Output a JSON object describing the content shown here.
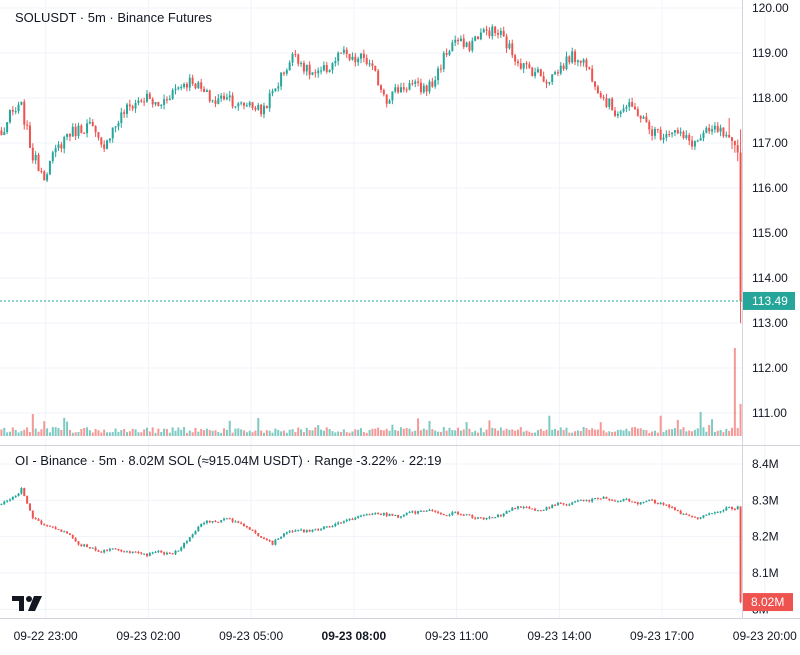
{
  "price_pane": {
    "title": "SOLUSDT · 5m · Binance Futures",
    "y_ticks": [
      "120.00",
      "119.00",
      "118.00",
      "117.00",
      "116.00",
      "115.00",
      "114.00",
      "113.00",
      "112.00",
      "111.00"
    ],
    "last_price_label": "113.49"
  },
  "oi_pane": {
    "title": "OI - Binance · 5m · 8.02M SOL (≈915.04M USDT) · Range -3.22% · 22:19",
    "y_ticks": [
      "8.4M",
      "8.3M",
      "8.2M",
      "8.1M"
    ],
    "last_value_label": "8.02M",
    "obscured_tick_label": "8M"
  },
  "x_axis": {
    "ticks": [
      "09-22 23:00",
      "09-23 02:00",
      "09-23 05:00",
      "09-23 08:00",
      "09-23 11:00",
      "09-23 14:00",
      "09-23 17:00",
      "09-23 20:00"
    ],
    "bold_tick": "09-23 08:00"
  },
  "colors": {
    "up": "#26a69a",
    "down": "#ef5350",
    "price_tag_bg": "#26a69a",
    "oi_tag_bg": "#ef5350",
    "grid": "#f0f3fa",
    "separator": "#d1d4dc",
    "text": "#131722"
  },
  "logo": "tradingview-logo",
  "chart_data": [
    {
      "type": "candlestick",
      "title": "SOLUSDT · 5m · Binance Futures",
      "x_range": [
        "09-22 21:40",
        "09-23 22:20"
      ],
      "ylim": [
        110.6,
        120.2
      ],
      "last_value": 113.49,
      "close_path": [
        [
          "09-22 21:40",
          117.0
        ],
        [
          "09-22 22:00",
          117.6
        ],
        [
          "09-22 22:20",
          117.8
        ],
        [
          "09-22 22:40",
          116.7
        ],
        [
          "09-22 23:00",
          116.3
        ],
        [
          "09-22 23:20",
          116.8
        ],
        [
          "09-22 23:40",
          117.2
        ],
        [
          "09-23 00:00",
          117.3
        ],
        [
          "09-23 00:20",
          117.4
        ],
        [
          "09-23 00:40",
          116.9
        ],
        [
          "09-23 01:00",
          117.3
        ],
        [
          "09-23 01:20",
          117.7
        ],
        [
          "09-23 01:40",
          117.9
        ],
        [
          "09-23 02:00",
          118.0
        ],
        [
          "09-23 02:20",
          117.8
        ],
        [
          "09-23 02:40",
          118.1
        ],
        [
          "09-23 03:00",
          118.3
        ],
        [
          "09-23 03:20",
          118.4
        ],
        [
          "09-23 03:40",
          118.1
        ],
        [
          "09-23 04:00",
          117.9
        ],
        [
          "09-23 04:20",
          118.1
        ],
        [
          "09-23 04:40",
          117.8
        ],
        [
          "09-23 05:00",
          117.9
        ],
        [
          "09-23 05:20",
          117.7
        ],
        [
          "09-23 05:40",
          118.1
        ],
        [
          "09-23 06:00",
          118.6
        ],
        [
          "09-23 06:20",
          119.0
        ],
        [
          "09-23 06:40",
          118.6
        ],
        [
          "09-23 07:00",
          118.5
        ],
        [
          "09-23 07:20",
          118.7
        ],
        [
          "09-23 07:40",
          119.0
        ],
        [
          "09-23 08:00",
          118.8
        ],
        [
          "09-23 08:20",
          118.9
        ],
        [
          "09-23 08:40",
          118.5
        ],
        [
          "09-23 09:00",
          118.0
        ],
        [
          "09-23 09:20",
          118.2
        ],
        [
          "09-23 09:40",
          118.3
        ],
        [
          "09-23 10:00",
          118.2
        ],
        [
          "09-23 10:20",
          118.3
        ],
        [
          "09-23 10:40",
          118.9
        ],
        [
          "09-23 11:00",
          119.3
        ],
        [
          "09-23 11:20",
          119.1
        ],
        [
          "09-23 11:40",
          119.4
        ],
        [
          "09-23 12:00",
          119.5
        ],
        [
          "09-23 12:20",
          119.4
        ],
        [
          "09-23 12:40",
          119.0
        ],
        [
          "09-23 13:00",
          118.7
        ],
        [
          "09-23 13:20",
          118.6
        ],
        [
          "09-23 13:40",
          118.4
        ],
        [
          "09-23 14:00",
          118.6
        ],
        [
          "09-23 14:20",
          118.9
        ],
        [
          "09-23 14:40",
          118.9
        ],
        [
          "09-23 15:00",
          118.5
        ],
        [
          "09-23 15:20",
          118.0
        ],
        [
          "09-23 15:40",
          117.7
        ],
        [
          "09-23 16:00",
          117.8
        ],
        [
          "09-23 16:20",
          117.7
        ],
        [
          "09-23 16:40",
          117.3
        ],
        [
          "09-23 17:00",
          117.2
        ],
        [
          "09-23 17:20",
          117.3
        ],
        [
          "09-23 17:40",
          117.1
        ],
        [
          "09-23 18:00",
          117.0
        ],
        [
          "09-23 18:20",
          117.2
        ],
        [
          "09-23 18:40",
          117.3
        ],
        [
          "09-23 19:00",
          117.0
        ],
        [
          "09-23 19:20",
          116.7
        ],
        [
          "09-23 19:40",
          116.9
        ],
        [
          "09-23 20:00",
          116.8
        ],
        [
          "09-23 20:20",
          116.8
        ],
        [
          "09-23 20:40",
          116.4
        ],
        [
          "09-23 21:00",
          116.5
        ],
        [
          "09-23 21:20",
          116.8
        ],
        [
          "09-23 21:40",
          116.6
        ],
        [
          "09-23 22:00",
          115.5
        ],
        [
          "09-23 22:10",
          113.2
        ],
        [
          "09-23 22:20",
          113.49
        ]
      ],
      "x_ticks": [
        "09-22 23:00",
        "09-23 02:00",
        "09-23 05:00",
        "09-23 08:00",
        "09-23 11:00",
        "09-23 14:00",
        "09-23 17:00",
        "09-23 20:00"
      ],
      "y_ticks": [
        120,
        119,
        118,
        117,
        116,
        115,
        114,
        113,
        112,
        111
      ]
    },
    {
      "type": "candlestick",
      "title": "OI - Binance · 5m · 8.02M SOL (≈915.04M USDT) · Range -3.22% · 22:19",
      "unit": "M SOL",
      "ylim": [
        7.97,
        8.44
      ],
      "last_value": 8.02,
      "close_path": [
        [
          "09-22 21:40",
          8.29
        ],
        [
          "09-22 22:00",
          8.3
        ],
        [
          "09-22 22:20",
          8.33
        ],
        [
          "09-22 22:40",
          8.25
        ],
        [
          "09-22 23:00",
          8.23
        ],
        [
          "09-22 23:20",
          8.22
        ],
        [
          "09-22 23:40",
          8.21
        ],
        [
          "09-23 00:00",
          8.18
        ],
        [
          "09-23 00:20",
          8.17
        ],
        [
          "09-23 00:40",
          8.16
        ],
        [
          "09-23 01:00",
          8.165
        ],
        [
          "09-23 01:20",
          8.16
        ],
        [
          "09-23 01:40",
          8.155
        ],
        [
          "09-23 02:00",
          8.15
        ],
        [
          "09-23 02:20",
          8.16
        ],
        [
          "09-23 02:40",
          8.15
        ],
        [
          "09-23 03:00",
          8.17
        ],
        [
          "09-23 03:20",
          8.21
        ],
        [
          "09-23 03:40",
          8.24
        ],
        [
          "09-23 04:00",
          8.24
        ],
        [
          "09-23 04:20",
          8.25
        ],
        [
          "09-23 04:40",
          8.24
        ],
        [
          "09-23 05:00",
          8.22
        ],
        [
          "09-23 05:20",
          8.2
        ],
        [
          "09-23 05:40",
          8.18
        ],
        [
          "09-23 06:00",
          8.21
        ],
        [
          "09-23 06:20",
          8.22
        ],
        [
          "09-23 06:40",
          8.215
        ],
        [
          "09-23 07:00",
          8.22
        ],
        [
          "09-23 07:20",
          8.23
        ],
        [
          "09-23 07:40",
          8.24
        ],
        [
          "09-23 08:00",
          8.25
        ],
        [
          "09-23 08:20",
          8.26
        ],
        [
          "09-23 08:40",
          8.265
        ],
        [
          "09-23 09:00",
          8.26
        ],
        [
          "09-23 09:20",
          8.255
        ],
        [
          "09-23 09:40",
          8.265
        ],
        [
          "09-23 10:00",
          8.27
        ],
        [
          "09-23 10:20",
          8.27
        ],
        [
          "09-23 10:40",
          8.26
        ],
        [
          "09-23 11:00",
          8.265
        ],
        [
          "09-23 11:20",
          8.26
        ],
        [
          "09-23 11:40",
          8.25
        ],
        [
          "09-23 12:00",
          8.25
        ],
        [
          "09-23 12:20",
          8.26
        ],
        [
          "09-23 12:40",
          8.28
        ],
        [
          "09-23 13:00",
          8.28
        ],
        [
          "09-23 13:20",
          8.27
        ],
        [
          "09-23 13:40",
          8.28
        ],
        [
          "09-23 14:00",
          8.29
        ],
        [
          "09-23 14:20",
          8.29
        ],
        [
          "09-23 14:40",
          8.3
        ],
        [
          "09-23 15:00",
          8.3
        ],
        [
          "09-23 15:20",
          8.31
        ],
        [
          "09-23 15:40",
          8.3
        ],
        [
          "09-23 16:00",
          8.3
        ],
        [
          "09-23 16:20",
          8.29
        ],
        [
          "09-23 16:40",
          8.3
        ],
        [
          "09-23 17:00",
          8.29
        ],
        [
          "09-23 17:20",
          8.28
        ],
        [
          "09-23 17:40",
          8.26
        ],
        [
          "09-23 18:00",
          8.25
        ],
        [
          "09-23 18:20",
          8.26
        ],
        [
          "09-23 18:40",
          8.27
        ],
        [
          "09-23 19:00",
          8.28
        ],
        [
          "09-23 19:20",
          8.28
        ],
        [
          "09-23 19:40",
          8.285
        ],
        [
          "09-23 20:00",
          8.285
        ],
        [
          "09-23 20:20",
          8.29
        ],
        [
          "09-23 20:40",
          8.29
        ],
        [
          "09-23 21:00",
          8.28
        ],
        [
          "09-23 21:20",
          8.2
        ],
        [
          "09-23 21:40",
          8.21
        ],
        [
          "09-23 22:00",
          8.25
        ],
        [
          "09-23 22:10",
          8.2
        ],
        [
          "09-23 22:20",
          8.02
        ]
      ],
      "y_ticks": [
        8.4,
        8.3,
        8.2,
        8.1
      ]
    }
  ]
}
